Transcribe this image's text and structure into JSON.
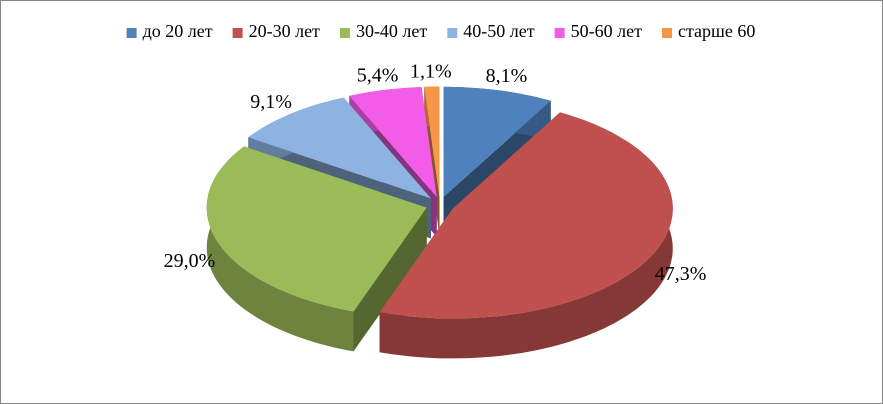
{
  "chart_data": {
    "type": "pie3d",
    "categories": [
      "до 20 лет",
      "20-30 лет",
      "30-40 лет",
      "40-50 лет",
      "50-60 лет",
      "старше 60"
    ],
    "values": [
      8.1,
      47.3,
      29.0,
      9.1,
      5.4,
      1.1
    ],
    "value_labels": [
      "8,1%",
      "47,3%",
      "29,0%",
      "9,1%",
      "5,4%",
      "1,1%"
    ],
    "colors": [
      "#4f81bd",
      "#c0504d",
      "#9bbb59",
      "#8db3e2",
      "#f35ce8",
      "#f79646"
    ],
    "legend": "top"
  }
}
